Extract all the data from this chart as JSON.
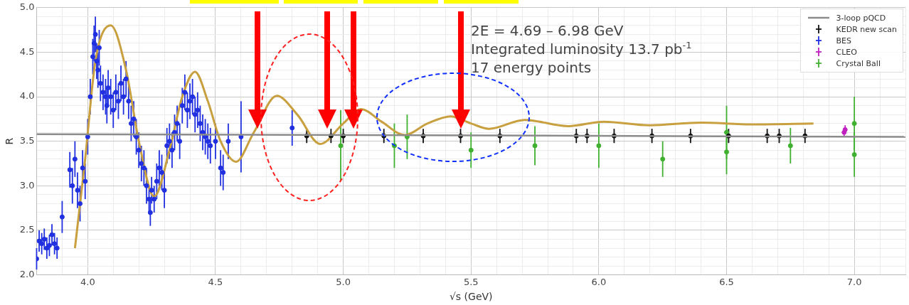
{
  "chart_data": {
    "type": "scatter",
    "xlabel": "√s (GeV)",
    "ylabel": "R",
    "xlim": [
      3.8,
      7.2
    ],
    "ylim": [
      2.0,
      5.0
    ],
    "xticks": [
      {
        "value": 3.8,
        "label": null
      },
      {
        "value": 3.9,
        "label": null
      },
      {
        "value": 4.0,
        "label": "4.0"
      },
      {
        "value": 4.1,
        "label": null
      },
      {
        "value": 4.2,
        "label": null
      },
      {
        "value": 4.3,
        "label": null
      },
      {
        "value": 4.4,
        "label": null
      },
      {
        "value": 4.5,
        "label": "4.5"
      },
      {
        "value": 4.6,
        "label": null
      },
      {
        "value": 4.7,
        "label": null
      },
      {
        "value": 4.8,
        "label": null
      },
      {
        "value": 4.9,
        "label": null
      },
      {
        "value": 5.0,
        "label": "5.0"
      },
      {
        "value": 5.1,
        "label": null
      },
      {
        "value": 5.2,
        "label": null
      },
      {
        "value": 5.3,
        "label": null
      },
      {
        "value": 5.4,
        "label": null
      },
      {
        "value": 5.5,
        "label": "5.5"
      },
      {
        "value": 5.6,
        "label": null
      },
      {
        "value": 5.7,
        "label": null
      },
      {
        "value": 5.8,
        "label": null
      },
      {
        "value": 5.9,
        "label": null
      },
      {
        "value": 6.0,
        "label": "6.0"
      },
      {
        "value": 6.1,
        "label": null
      },
      {
        "value": 6.2,
        "label": null
      },
      {
        "value": 6.3,
        "label": null
      },
      {
        "value": 6.4,
        "label": null
      },
      {
        "value": 6.5,
        "label": "6.5"
      },
      {
        "value": 6.6,
        "label": null
      },
      {
        "value": 6.7,
        "label": null
      },
      {
        "value": 6.8,
        "label": null
      },
      {
        "value": 6.9,
        "label": null
      },
      {
        "value": 7.0,
        "label": "7.0"
      },
      {
        "value": 7.1,
        "label": null
      },
      {
        "value": 7.2,
        "label": null
      }
    ],
    "yticks": [
      {
        "value": 2.0,
        "label": "2.0"
      },
      {
        "value": 2.1,
        "label": null
      },
      {
        "value": 2.2,
        "label": null
      },
      {
        "value": 2.3,
        "label": null
      },
      {
        "value": 2.4,
        "label": null
      },
      {
        "value": 2.5,
        "label": "2.5"
      },
      {
        "value": 2.6,
        "label": null
      },
      {
        "value": 2.7,
        "label": null
      },
      {
        "value": 2.8,
        "label": null
      },
      {
        "value": 2.9,
        "label": null
      },
      {
        "value": 3.0,
        "label": "3.0"
      },
      {
        "value": 3.1,
        "label": null
      },
      {
        "value": 3.2,
        "label": null
      },
      {
        "value": 3.3,
        "label": null
      },
      {
        "value": 3.4,
        "label": null
      },
      {
        "value": 3.5,
        "label": "3.5"
      },
      {
        "value": 3.6,
        "label": null
      },
      {
        "value": 3.7,
        "label": null
      },
      {
        "value": 3.8,
        "label": null
      },
      {
        "value": 3.9,
        "label": null
      },
      {
        "value": 4.0,
        "label": "4.0"
      },
      {
        "value": 4.1,
        "label": null
      },
      {
        "value": 4.2,
        "label": null
      },
      {
        "value": 4.3,
        "label": null
      },
      {
        "value": 4.4,
        "label": null
      },
      {
        "value": 4.5,
        "label": "4.5"
      },
      {
        "value": 4.6,
        "label": null
      },
      {
        "value": 4.7,
        "label": null
      },
      {
        "value": 4.8,
        "label": null
      },
      {
        "value": 4.9,
        "label": null
      },
      {
        "value": 5.0,
        "label": "5.0"
      }
    ],
    "grid": true,
    "legend": "top right",
    "marker": "circle",
    "annotations": [
      "2E = 4.69 – 6.98 GeV",
      "Integrated luminosity 13.7 pb$^{-1}$",
      "17 energy points"
    ],
    "series": [
      {
        "name": "3-loop pQCD",
        "type": "line",
        "marker": "none",
        "color": "#8c8c8c",
        "x": [
          3.8,
          7.2
        ],
        "values": [
          3.58,
          3.55
        ]
      },
      {
        "name": "KEDR new scan",
        "type": "scatter",
        "color": "#111111",
        "x": [
          4.857,
          4.952,
          5.0,
          5.159,
          5.313,
          5.459,
          5.613,
          5.912,
          5.954,
          6.06,
          6.208,
          6.359,
          6.508,
          6.659,
          6.706,
          6.807
        ],
        "values": [
          3.56,
          3.56,
          3.56,
          3.56,
          3.56,
          3.56,
          3.56,
          3.56,
          3.56,
          3.56,
          3.56,
          3.56,
          3.56,
          3.56,
          3.56,
          3.56
        ],
        "errors": [
          0.08,
          0.08,
          0.08,
          0.08,
          0.08,
          0.08,
          0.08,
          0.08,
          0.08,
          0.08,
          0.08,
          0.08,
          0.08,
          0.08,
          0.08,
          0.08
        ]
      },
      {
        "name": "BES",
        "type": "scatter",
        "color": "#2030e0",
        "x": [
          3.8,
          3.81,
          3.82,
          3.83,
          3.84,
          3.85,
          3.86,
          3.87,
          3.88,
          3.9,
          3.93,
          3.94,
          3.95,
          3.96,
          3.97,
          3.98,
          3.99,
          4.0,
          4.01,
          4.02,
          4.025,
          4.03,
          4.035,
          4.04,
          4.045,
          4.05,
          4.06,
          4.07,
          4.075,
          4.08,
          4.09,
          4.1,
          4.11,
          4.12,
          4.13,
          4.14,
          4.15,
          4.16,
          4.17,
          4.18,
          4.19,
          4.2,
          4.21,
          4.22,
          4.23,
          4.24,
          4.245,
          4.25,
          4.26,
          4.27,
          4.28,
          4.29,
          4.3,
          4.31,
          4.32,
          4.33,
          4.34,
          4.35,
          4.36,
          4.37,
          4.38,
          4.39,
          4.4,
          4.41,
          4.42,
          4.43,
          4.44,
          4.45,
          4.46,
          4.47,
          4.48,
          4.5,
          4.52,
          4.53,
          4.55,
          4.6,
          4.8
        ],
        "values": [
          2.18,
          2.38,
          2.35,
          2.4,
          2.3,
          2.33,
          2.45,
          2.35,
          2.3,
          2.65,
          3.18,
          3.0,
          3.3,
          2.95,
          2.8,
          3.2,
          3.05,
          3.55,
          4.0,
          4.45,
          4.6,
          4.7,
          4.4,
          4.3,
          4.55,
          4.15,
          4.05,
          4.0,
          3.9,
          4.1,
          4.0,
          3.85,
          4.05,
          3.95,
          4.15,
          4.0,
          4.2,
          3.95,
          3.7,
          3.75,
          3.55,
          3.4,
          3.25,
          3.2,
          3.0,
          2.85,
          2.7,
          2.95,
          2.85,
          3.05,
          3.2,
          3.15,
          2.95,
          3.45,
          3.5,
          3.4,
          3.6,
          3.7,
          3.5,
          3.9,
          4.05,
          3.85,
          3.95,
          4.0,
          3.8,
          3.85,
          3.7,
          3.6,
          3.55,
          3.5,
          3.45,
          3.5,
          3.2,
          3.15,
          3.5,
          3.55,
          3.65
        ],
        "errors": [
          0.12,
          0.12,
          0.12,
          0.12,
          0.12,
          0.12,
          0.12,
          0.12,
          0.12,
          0.18,
          0.2,
          0.2,
          0.2,
          0.2,
          0.2,
          0.2,
          0.2,
          0.2,
          0.2,
          0.2,
          0.2,
          0.2,
          0.2,
          0.2,
          0.2,
          0.2,
          0.2,
          0.2,
          0.2,
          0.2,
          0.2,
          0.2,
          0.2,
          0.2,
          0.2,
          0.2,
          0.2,
          0.2,
          0.2,
          0.2,
          0.2,
          0.2,
          0.2,
          0.2,
          0.2,
          0.15,
          0.15,
          0.15,
          0.15,
          0.2,
          0.2,
          0.2,
          0.2,
          0.2,
          0.2,
          0.2,
          0.2,
          0.2,
          0.2,
          0.2,
          0.2,
          0.2,
          0.2,
          0.2,
          0.2,
          0.2,
          0.2,
          0.2,
          0.2,
          0.2,
          0.2,
          0.2,
          0.2,
          0.2,
          0.2,
          0.4,
          0.2
        ]
      },
      {
        "name": "CLEO",
        "type": "scatter",
        "color": "#c020c0",
        "x": [
          6.96,
          6.964
        ],
        "values": [
          3.6,
          3.63
        ],
        "errors": [
          0.05,
          0.05
        ]
      },
      {
        "name": "Crystal Ball",
        "type": "scatter",
        "color": "#40b030",
        "x": [
          4.99,
          5.2,
          5.25,
          5.5,
          5.75,
          6.0,
          6.25,
          6.5,
          6.5,
          6.75,
          7.0,
          7.0
        ],
        "values": [
          3.45,
          3.45,
          3.55,
          3.4,
          3.45,
          3.45,
          3.3,
          3.6,
          3.38,
          3.45,
          3.7,
          3.35
        ],
        "errors": [
          0.4,
          0.25,
          0.25,
          0.2,
          0.22,
          0.25,
          0.2,
          0.3,
          0.25,
          0.2,
          0.3,
          0.25
        ]
      },
      {
        "type": "line",
        "marker": "none",
        "color": "#c8a040",
        "x": [
          3.95,
          3.99,
          4.03,
          4.09,
          4.15,
          4.2,
          4.26,
          4.32,
          4.37,
          4.42,
          4.47,
          4.52,
          4.58,
          4.65,
          4.74,
          4.82,
          4.91,
          5.0,
          5.07,
          5.15,
          5.24,
          5.33,
          5.42,
          5.5,
          5.57,
          5.71,
          5.88,
          6.02,
          6.2,
          6.4,
          6.6,
          6.84
        ],
        "values": [
          2.3,
          3.3,
          4.4,
          4.8,
          4.3,
          3.5,
          2.88,
          3.4,
          4.0,
          4.28,
          3.95,
          3.5,
          3.27,
          3.6,
          4.01,
          3.8,
          3.47,
          3.7,
          3.86,
          3.72,
          3.57,
          3.7,
          3.78,
          3.7,
          3.64,
          3.74,
          3.67,
          3.72,
          3.68,
          3.71,
          3.69,
          3.7
        ]
      }
    ]
  }
}
